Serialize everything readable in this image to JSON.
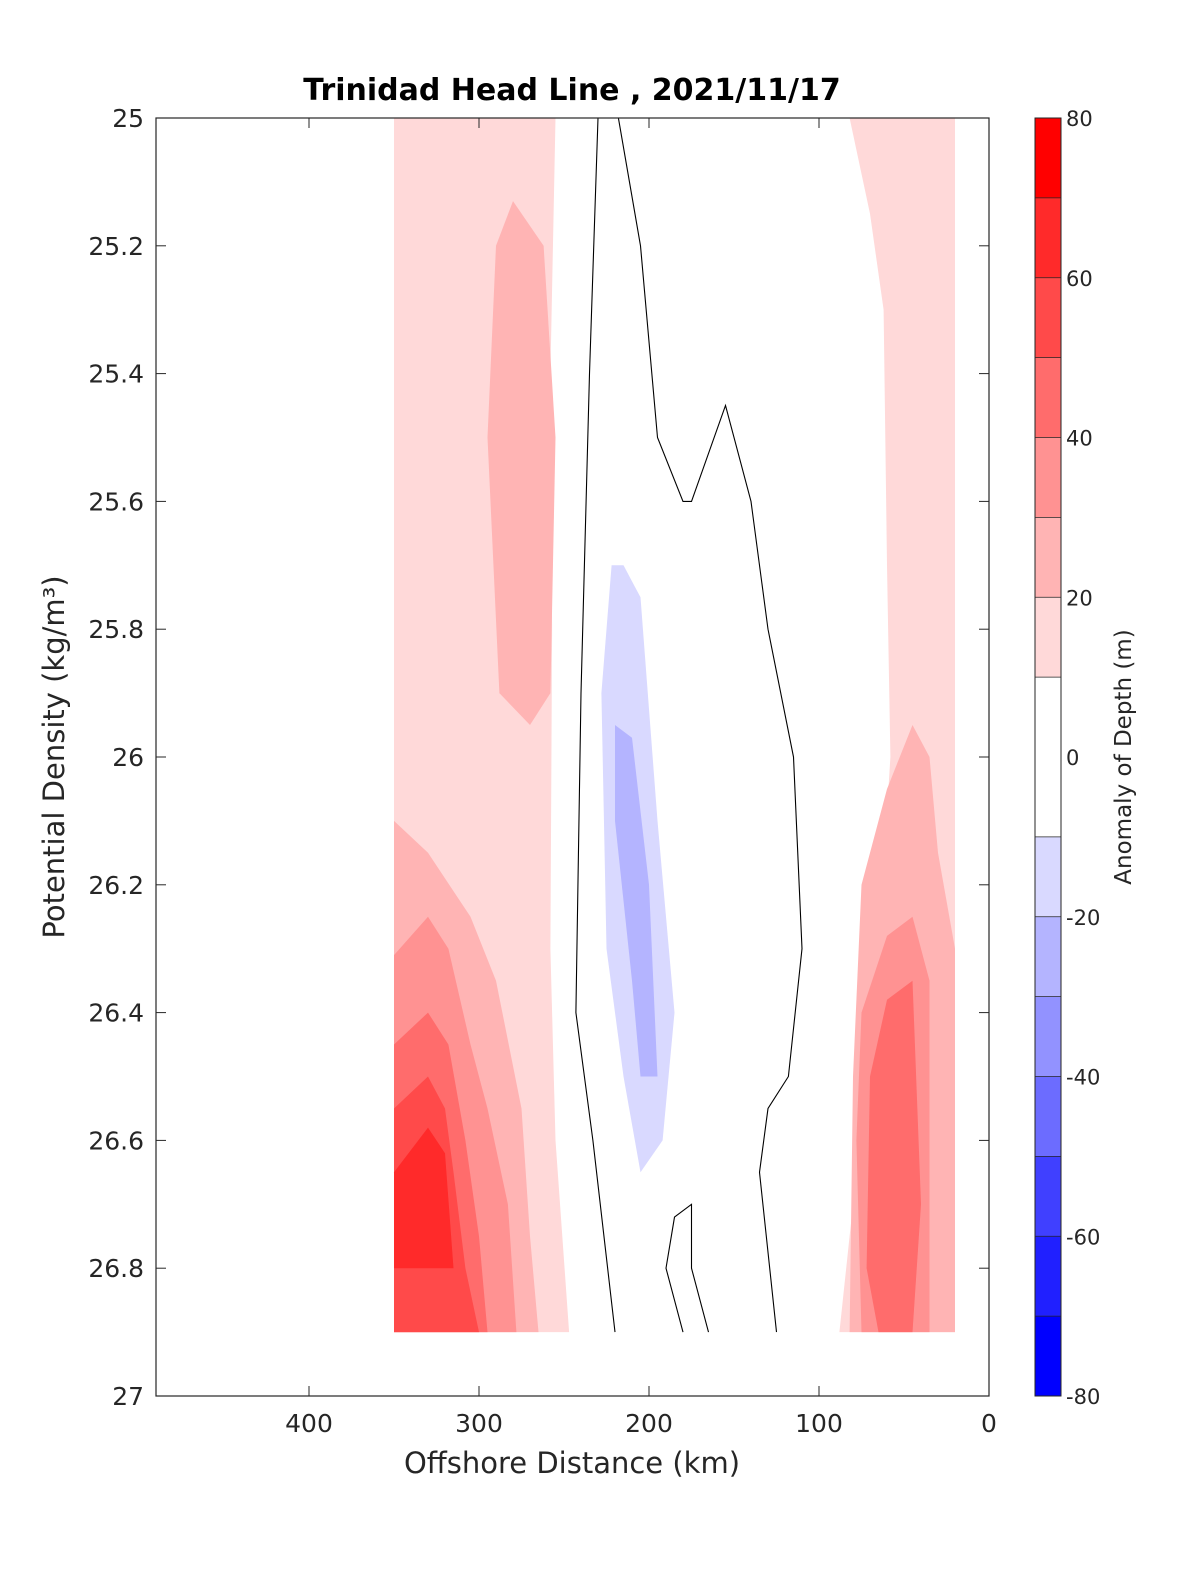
{
  "chart_data": {
    "type": "heatmap",
    "subtype": "filled-contour",
    "title": "Trinidad Head Line , 2021/11/17",
    "xlabel": "Offshore Distance (km)",
    "ylabel": "Potential Density (kg/m³)",
    "xlim": [
      490,
      0
    ],
    "x_reversed": true,
    "ylim": [
      25,
      27
    ],
    "y_reversed": true,
    "xticks": [
      400,
      300,
      200,
      100,
      0
    ],
    "yticks": [
      25,
      25.2,
      25.4,
      25.6,
      25.8,
      26,
      26.2,
      26.4,
      26.6,
      26.8,
      27
    ],
    "colorbar": {
      "label": "Anomaly of Depth (m)",
      "ticks": [
        80,
        60,
        40,
        20,
        0,
        -20,
        -40,
        -60,
        -80
      ],
      "range": [
        -80,
        80
      ],
      "levels": [
        -80,
        -70,
        -60,
        -50,
        -40,
        -30,
        -20,
        -10,
        10,
        20,
        30,
        40,
        50,
        60,
        70,
        80
      ],
      "colors": [
        "#0000ff",
        "#2020ff",
        "#4040ff",
        "#6c6cff",
        "#9292ff",
        "#b4b4ff",
        "#d9d9ff",
        "#ffffff",
        "#ffd9d9",
        "#ffb4b4",
        "#ff9292",
        "#ff6c6c",
        "#ff4a4a",
        "#ff2a2a",
        "#ff0000"
      ]
    },
    "grid": false,
    "data_extent": {
      "x": [
        20,
        350
      ],
      "y": [
        25,
        26.9
      ]
    },
    "regions": [
      {
        "level": 10,
        "points": [
          [
            350,
            25
          ],
          [
            250,
            25
          ],
          [
            243,
            25.4
          ],
          [
            240,
            25.9
          ],
          [
            241,
            26.4
          ],
          [
            237,
            26.9
          ],
          [
            350,
            26.9
          ]
        ]
      },
      {
        "level": 20,
        "points": [
          [
            350,
            25
          ],
          [
            255,
            25
          ],
          [
            258,
            25.4
          ],
          [
            257,
            25.8
          ],
          [
            258,
            26.3
          ],
          [
            255,
            26.6
          ],
          [
            247,
            26.9
          ],
          [
            350,
            26.9
          ]
        ]
      },
      {
        "level": 30,
        "points": [
          [
            350,
            26.1
          ],
          [
            330,
            26.15
          ],
          [
            305,
            26.25
          ],
          [
            290,
            26.35
          ],
          [
            275,
            26.55
          ],
          [
            270,
            26.75
          ],
          [
            265,
            26.9
          ],
          [
            350,
            26.9
          ]
        ]
      },
      {
        "level": 30,
        "points": [
          [
            280,
            25.13
          ],
          [
            262,
            25.2
          ],
          [
            255,
            25.5
          ],
          [
            258,
            25.9
          ],
          [
            270,
            25.95
          ],
          [
            288,
            25.9
          ],
          [
            295,
            25.5
          ],
          [
            290,
            25.2
          ]
        ]
      },
      {
        "level": 40,
        "points": [
          [
            350,
            26.31
          ],
          [
            330,
            26.25
          ],
          [
            318,
            26.3
          ],
          [
            305,
            26.45
          ],
          [
            295,
            26.55
          ],
          [
            283,
            26.7
          ],
          [
            278,
            26.9
          ],
          [
            350,
            26.9
          ]
        ]
      },
      {
        "level": 50,
        "points": [
          [
            350,
            26.45
          ],
          [
            330,
            26.4
          ],
          [
            318,
            26.45
          ],
          [
            308,
            26.6
          ],
          [
            300,
            26.75
          ],
          [
            295,
            26.9
          ],
          [
            350,
            26.9
          ]
        ]
      },
      {
        "level": 60,
        "points": [
          [
            350,
            26.55
          ],
          [
            330,
            26.5
          ],
          [
            320,
            26.55
          ],
          [
            315,
            26.65
          ],
          [
            308,
            26.8
          ],
          [
            300,
            26.9
          ],
          [
            350,
            26.9
          ]
        ]
      },
      {
        "level": 70,
        "points": [
          [
            350,
            26.65
          ],
          [
            330,
            26.58
          ],
          [
            320,
            26.62
          ],
          [
            315,
            26.8
          ],
          [
            350,
            26.8
          ]
        ]
      },
      {
        "level": 10,
        "points": [
          [
            20,
            25
          ],
          [
            140,
            25
          ],
          [
            130,
            25.2
          ],
          [
            110,
            25.3
          ],
          [
            100,
            25.5
          ],
          [
            95,
            25.8
          ],
          [
            92,
            26.2
          ],
          [
            95,
            26.6
          ],
          [
            100,
            26.9
          ],
          [
            20,
            26.9
          ]
        ]
      },
      {
        "level": 20,
        "points": [
          [
            20,
            25
          ],
          [
            82,
            25
          ],
          [
            70,
            25.15
          ],
          [
            62,
            25.3
          ],
          [
            60,
            25.7
          ],
          [
            58,
            26.0
          ],
          [
            65,
            26.3
          ],
          [
            75,
            26.5
          ],
          [
            80,
            26.7
          ],
          [
            88,
            26.9
          ],
          [
            20,
            26.9
          ]
        ]
      },
      {
        "level": 30,
        "points": [
          [
            20,
            26.3
          ],
          [
            30,
            26.15
          ],
          [
            35,
            26.0
          ],
          [
            45,
            25.95
          ],
          [
            60,
            26.05
          ],
          [
            75,
            26.2
          ],
          [
            80,
            26.5
          ],
          [
            82,
            26.9
          ],
          [
            20,
            26.9
          ]
        ]
      },
      {
        "level": 40,
        "points": [
          [
            35,
            26.35
          ],
          [
            45,
            26.25
          ],
          [
            60,
            26.28
          ],
          [
            75,
            26.4
          ],
          [
            78,
            26.6
          ],
          [
            75,
            26.9
          ],
          [
            35,
            26.9
          ]
        ]
      },
      {
        "level": 50,
        "points": [
          [
            45,
            26.35
          ],
          [
            60,
            26.38
          ],
          [
            70,
            26.5
          ],
          [
            72,
            26.8
          ],
          [
            65,
            26.9
          ],
          [
            45,
            26.9
          ],
          [
            40,
            26.7
          ]
        ]
      },
      {
        "level": -10,
        "points": [
          [
            215,
            25.46
          ],
          [
            205,
            25.5
          ],
          [
            195,
            25.8
          ],
          [
            175,
            26.0
          ],
          [
            160,
            26.2
          ],
          [
            150,
            26.4
          ],
          [
            165,
            26.6
          ],
          [
            185,
            26.7
          ],
          [
            200,
            26.8
          ],
          [
            210,
            26.8
          ],
          [
            222,
            26.6
          ],
          [
            230,
            26.4
          ],
          [
            235,
            26.1
          ],
          [
            232,
            25.8
          ],
          [
            225,
            25.5
          ]
        ]
      },
      {
        "level": -20,
        "points": [
          [
            215,
            25.7
          ],
          [
            205,
            25.75
          ],
          [
            195,
            26.1
          ],
          [
            185,
            26.4
          ],
          [
            192,
            26.6
          ],
          [
            205,
            26.65
          ],
          [
            215,
            26.5
          ],
          [
            225,
            26.3
          ],
          [
            228,
            25.9
          ],
          [
            222,
            25.7
          ]
        ]
      },
      {
        "level": -30,
        "points": [
          [
            220,
            25.95
          ],
          [
            210,
            25.97
          ],
          [
            200,
            26.2
          ],
          [
            195,
            26.5
          ],
          [
            205,
            26.5
          ],
          [
            210,
            26.35
          ],
          [
            220,
            26.1
          ]
        ]
      }
    ],
    "contour_lines": [
      {
        "level": 0,
        "points": [
          [
            230,
            25
          ],
          [
            235,
            25.4
          ],
          [
            240,
            25.9
          ],
          [
            243,
            26.4
          ],
          [
            233,
            26.6
          ],
          [
            220,
            26.9
          ]
        ]
      },
      {
        "level": 0,
        "points": [
          [
            218,
            25
          ],
          [
            205,
            25.2
          ],
          [
            195,
            25.5
          ],
          [
            180,
            25.6
          ],
          [
            175,
            25.6
          ],
          [
            155,
            25.45
          ],
          [
            140,
            25.6
          ],
          [
            130,
            25.8
          ],
          [
            115,
            26.0
          ],
          [
            110,
            26.3
          ],
          [
            118,
            26.5
          ],
          [
            130,
            26.55
          ],
          [
            135,
            26.65
          ],
          [
            125,
            26.9
          ]
        ]
      },
      {
        "level": 0,
        "points": [
          [
            165,
            26.9
          ],
          [
            175,
            26.8
          ],
          [
            175,
            26.7
          ],
          [
            185,
            26.72
          ],
          [
            190,
            26.8
          ],
          [
            180,
            26.9
          ]
        ]
      }
    ]
  }
}
